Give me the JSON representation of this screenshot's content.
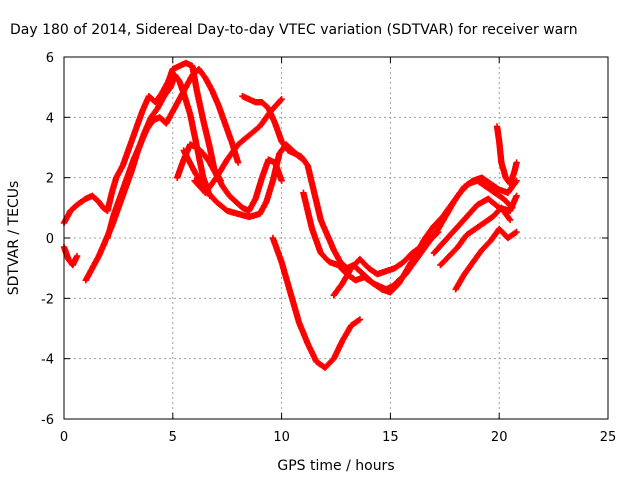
{
  "chart_data": {
    "type": "scatter",
    "title": "Day 180 of 2014, Sidereal Day-to-day VTEC variation (SDTVAR) for receiver warn",
    "xlabel": "GPS time / hours",
    "ylabel": "SDTVAR / TECUs",
    "xlim": [
      0,
      25
    ],
    "ylim": [
      -6,
      6
    ],
    "xticks": [
      0,
      5,
      10,
      15,
      20,
      25
    ],
    "yticks": [
      -6,
      -4,
      -2,
      0,
      2,
      4,
      6
    ],
    "grid": true,
    "marker": "+",
    "color": "#ff0000",
    "series": [
      {
        "x": [
          0.0,
          0.3,
          0.6,
          1.0,
          1.3,
          1.6,
          1.8,
          2.0,
          2.2,
          2.4,
          2.7,
          3.0,
          3.3,
          3.6,
          3.9,
          4.2,
          4.5,
          4.8,
          5.0,
          5.3,
          5.6,
          5.9,
          6.1,
          6.4,
          6.7,
          6.9,
          7.2
        ],
        "y": [
          0.5,
          0.9,
          1.1,
          1.3,
          1.4,
          1.2,
          1.0,
          0.9,
          1.5,
          2.0,
          2.4,
          3.0,
          3.6,
          4.2,
          4.7,
          4.5,
          4.8,
          5.2,
          5.6,
          5.7,
          5.8,
          5.7,
          4.9,
          3.9,
          3.0,
          2.3,
          1.9
        ]
      },
      {
        "x": [
          0.0,
          0.2,
          0.4,
          0.6
        ],
        "y": [
          -0.3,
          -0.7,
          -0.9,
          -0.6
        ]
      },
      {
        "x": [
          1.0,
          1.3,
          1.6,
          1.9,
          2.2,
          2.5,
          2.8,
          3.1,
          3.4,
          3.7,
          4.0,
          4.3,
          4.6,
          4.9,
          5.1,
          5.3,
          5.5,
          5.8,
          6.0,
          6.2,
          6.4,
          6.7
        ],
        "y": [
          -1.4,
          -1.0,
          -0.6,
          -0.1,
          0.4,
          1.0,
          1.6,
          2.2,
          2.9,
          3.5,
          4.0,
          4.3,
          4.7,
          5.0,
          5.4,
          5.2,
          4.8,
          4.1,
          3.4,
          2.7,
          2.0,
          1.4
        ]
      },
      {
        "x": [
          2.0,
          2.3,
          2.6,
          2.9,
          3.2,
          3.5,
          3.8,
          4.1,
          4.4,
          4.7,
          5.0,
          5.3,
          5.6,
          5.9,
          6.2,
          6.5,
          6.8,
          7.1,
          7.4,
          7.7,
          8.0
        ],
        "y": [
          0.0,
          0.8,
          1.4,
          2.0,
          2.6,
          3.1,
          3.6,
          3.9,
          4.0,
          3.8,
          4.2,
          4.6,
          5.0,
          5.4,
          5.6,
          5.3,
          4.9,
          4.4,
          3.8,
          3.2,
          2.5
        ]
      },
      {
        "x": [
          5.2,
          5.5,
          5.8,
          6.1,
          6.4,
          6.7,
          7.0,
          7.3,
          7.6,
          7.9,
          8.2,
          8.5,
          8.8,
          9.1,
          9.4,
          9.7,
          10.0
        ],
        "y": [
          2.0,
          2.6,
          3.1,
          3.0,
          2.8,
          2.5,
          2.1,
          1.7,
          1.4,
          1.2,
          1.0,
          0.9,
          1.3,
          2.0,
          2.6,
          2.5,
          1.9
        ]
      },
      {
        "x": [
          5.5,
          6.0,
          6.5,
          7.0,
          7.5,
          8.0,
          8.5,
          9.0,
          9.3,
          9.6,
          9.9,
          10.2,
          10.5,
          10.8,
          11.0
        ],
        "y": [
          2.9,
          2.2,
          1.6,
          1.2,
          0.9,
          0.8,
          0.7,
          0.8,
          1.2,
          1.9,
          2.8,
          3.1,
          2.9,
          2.7,
          2.6
        ]
      },
      {
        "x": [
          6.0,
          6.5,
          7.0,
          7.5,
          8.0,
          8.5,
          9.0,
          9.5,
          10.0
        ],
        "y": [
          1.9,
          1.5,
          2.0,
          2.6,
          3.1,
          3.4,
          3.7,
          4.2,
          4.6
        ]
      },
      {
        "x": [
          8.2,
          8.5,
          8.8,
          9.1,
          9.4,
          9.7,
          10.0,
          10.3,
          10.6,
          10.9,
          11.2,
          11.5,
          11.8,
          12.1,
          12.4,
          12.7,
          13.0,
          13.3,
          13.6,
          13.9,
          14.2,
          14.5,
          14.8,
          15.1,
          15.4,
          15.7,
          16.0,
          16.3,
          16.6,
          16.9,
          17.2
        ],
        "y": [
          4.7,
          4.6,
          4.5,
          4.5,
          4.3,
          3.8,
          3.2,
          2.9,
          2.8,
          2.7,
          2.4,
          1.5,
          0.6,
          0.1,
          -0.4,
          -0.8,
          -1.0,
          -0.9,
          -1.1,
          -1.3,
          -1.5,
          -1.6,
          -1.7,
          -1.6,
          -1.4,
          -1.2,
          -0.9,
          -0.6,
          -0.3,
          0.0,
          0.2
        ]
      },
      {
        "x": [
          9.6,
          10.0,
          10.4,
          10.8,
          11.2,
          11.6,
          12.0,
          12.4,
          12.8,
          13.2,
          13.6
        ],
        "y": [
          0.0,
          -0.8,
          -1.8,
          -2.8,
          -3.5,
          -4.1,
          -4.3,
          -4.0,
          -3.4,
          -2.9,
          -2.7
        ]
      },
      {
        "x": [
          11.0,
          11.4,
          11.8,
          12.2,
          12.6,
          13.0,
          13.4,
          13.8,
          14.2,
          14.6,
          15.0,
          15.4,
          15.8,
          16.2,
          16.6,
          17.0,
          17.4,
          17.8,
          18.2,
          18.6,
          19.0,
          19.4,
          19.8,
          20.2,
          20.6
        ],
        "y": [
          1.5,
          0.3,
          -0.5,
          -0.8,
          -0.9,
          -1.2,
          -1.4,
          -1.3,
          -1.5,
          -1.7,
          -1.8,
          -1.5,
          -1.0,
          -0.5,
          0.0,
          0.4,
          0.7,
          1.1,
          1.5,
          1.8,
          1.9,
          1.7,
          1.5,
          1.3,
          1.0
        ]
      },
      {
        "x": [
          12.4,
          12.8,
          13.2,
          13.6,
          14.0,
          14.4,
          14.8,
          15.2,
          15.6,
          16.0,
          16.4,
          16.8
        ],
        "y": [
          -1.9,
          -1.5,
          -1.0,
          -0.7,
          -1.0,
          -1.2,
          -1.1,
          -1.0,
          -0.8,
          -0.5,
          -0.3,
          0.0
        ]
      },
      {
        "x": [
          16.8,
          17.2,
          17.6,
          18.0,
          18.4,
          18.8,
          19.2,
          19.6,
          20.0,
          20.4,
          20.8
        ],
        "y": [
          -0.1,
          0.3,
          0.8,
          1.3,
          1.7,
          1.9,
          2.0,
          1.8,
          1.6,
          1.5,
          1.9
        ]
      },
      {
        "x": [
          17.0,
          17.5,
          18.0,
          18.5,
          19.0,
          19.5,
          20.0,
          20.5,
          20.8
        ],
        "y": [
          -0.5,
          -0.1,
          0.3,
          0.7,
          1.1,
          1.3,
          1.0,
          0.9,
          1.4
        ]
      },
      {
        "x": [
          17.3,
          17.7,
          18.1,
          18.5,
          18.9,
          19.3,
          19.7,
          20.1,
          20.5
        ],
        "y": [
          -0.9,
          -0.6,
          -0.3,
          0.1,
          0.3,
          0.5,
          0.7,
          1.0,
          0.6
        ]
      },
      {
        "x": [
          18.0,
          18.4,
          18.8,
          19.2,
          19.6,
          20.0,
          20.4,
          20.8
        ],
        "y": [
          -1.7,
          -1.2,
          -0.8,
          -0.4,
          -0.1,
          0.3,
          0.0,
          0.2
        ]
      },
      {
        "x": [
          19.9,
          20.0,
          20.1,
          20.3,
          20.5,
          20.7,
          20.8
        ],
        "y": [
          3.7,
          3.2,
          2.5,
          2.0,
          1.8,
          2.2,
          2.5
        ]
      }
    ]
  }
}
